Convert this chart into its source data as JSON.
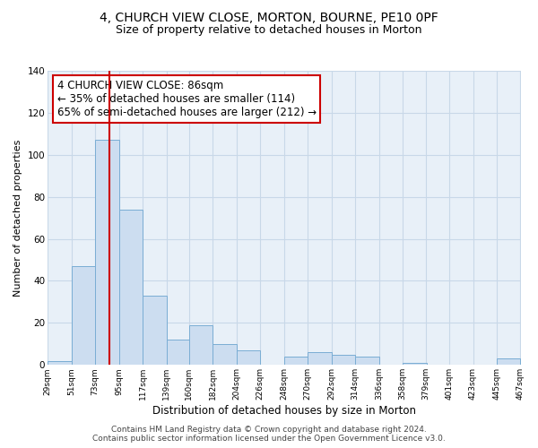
{
  "title1": "4, CHURCH VIEW CLOSE, MORTON, BOURNE, PE10 0PF",
  "title2": "Size of property relative to detached houses in Morton",
  "xlabel": "Distribution of detached houses by size in Morton",
  "ylabel": "Number of detached properties",
  "bar_left_edges": [
    29,
    51,
    73,
    95,
    117,
    139,
    160,
    182,
    204,
    226,
    248,
    270,
    292,
    314,
    336,
    358,
    379,
    401,
    423,
    445
  ],
  "bar_heights": [
    2,
    47,
    107,
    74,
    33,
    12,
    19,
    10,
    7,
    0,
    4,
    6,
    5,
    4,
    0,
    1,
    0,
    0,
    0,
    3
  ],
  "bin_width": 22,
  "bar_facecolor": "#ccddf0",
  "bar_edgecolor": "#7aadd4",
  "vline_x": 86,
  "vline_color": "#cc0000",
  "plot_bg_color": "#e8f0f8",
  "ylim": [
    0,
    140
  ],
  "yticks": [
    0,
    20,
    40,
    60,
    80,
    100,
    120,
    140
  ],
  "xtick_labels": [
    "29sqm",
    "51sqm",
    "73sqm",
    "95sqm",
    "117sqm",
    "139sqm",
    "160sqm",
    "182sqm",
    "204sqm",
    "226sqm",
    "248sqm",
    "270sqm",
    "292sqm",
    "314sqm",
    "336sqm",
    "358sqm",
    "379sqm",
    "401sqm",
    "423sqm",
    "445sqm",
    "467sqm"
  ],
  "annotation_title": "4 CHURCH VIEW CLOSE: 86sqm",
  "annotation_line1": "← 35% of detached houses are smaller (114)",
  "annotation_line2": "65% of semi-detached houses are larger (212) →",
  "annotation_box_color": "#ffffff",
  "annotation_box_edgecolor": "#cc0000",
  "footer1": "Contains HM Land Registry data © Crown copyright and database right 2024.",
  "footer2": "Contains public sector information licensed under the Open Government Licence v3.0.",
  "bg_color": "#ffffff",
  "grid_color": "#c8d8e8",
  "title1_fontsize": 10,
  "title2_fontsize": 9,
  "xlabel_fontsize": 8.5,
  "ylabel_fontsize": 8,
  "annotation_fontsize": 8.5,
  "footer_fontsize": 6.5
}
